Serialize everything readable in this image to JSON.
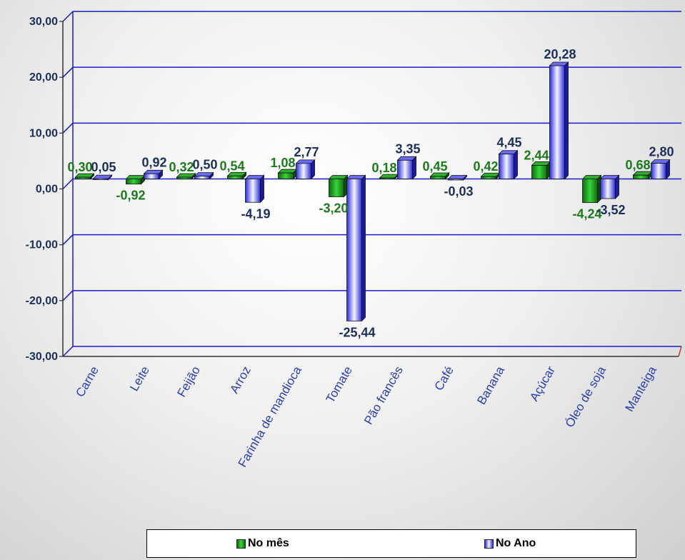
{
  "colors": {
    "mes": "#1a9a1a",
    "mes_light": "#6be26b",
    "mes_label": "#1b7a1b",
    "ano": "#3a3af0",
    "ano_light": "#e8e8ff",
    "ano_label": "#1c2f5a",
    "grid": "#1a1acc"
  },
  "chart_data": {
    "type": "bar",
    "categories": [
      "Carne",
      "Leite",
      "Feijão",
      "Arroz",
      "Farinha de mandioca",
      "Tomate",
      "Pão francês",
      "Café",
      "Banana",
      "Açúcar",
      "Óleo de soja",
      "Manteiga"
    ],
    "series": [
      {
        "name": "No mês",
        "values": [
          0.3,
          -0.92,
          0.32,
          0.54,
          1.08,
          -3.2,
          0.18,
          0.45,
          0.42,
          2.44,
          -4.24,
          0.68
        ],
        "labels": [
          "0,30",
          "-0,92",
          "0,32",
          "0,54",
          "1,08",
          "-3,20",
          "0,18",
          "0,45",
          "0,42",
          "2,44",
          "-4,24",
          "0,68"
        ]
      },
      {
        "name": "No Ano",
        "values": [
          0.05,
          0.92,
          0.5,
          -4.19,
          2.77,
          -25.44,
          3.35,
          -0.03,
          4.45,
          20.28,
          -3.52,
          2.8
        ],
        "labels": [
          "0,05",
          "0,92",
          "0,50",
          "-4,19",
          "2,77",
          "-25,44",
          "3,35",
          "-0,03",
          "4,45",
          "20,28",
          "-3,52",
          "2,80"
        ]
      }
    ],
    "ylim": [
      -30,
      30
    ],
    "yticks": [
      "-30,00",
      "-20,00",
      "-10,00",
      "0,00",
      "10,00",
      "20,00",
      "30,00"
    ],
    "ytick_values": [
      -30,
      -20,
      -10,
      0,
      10,
      20,
      30
    ],
    "grid": true,
    "legend_position": "bottom"
  },
  "legend": {
    "mes_label": "No mês",
    "ano_label": "No Ano"
  }
}
